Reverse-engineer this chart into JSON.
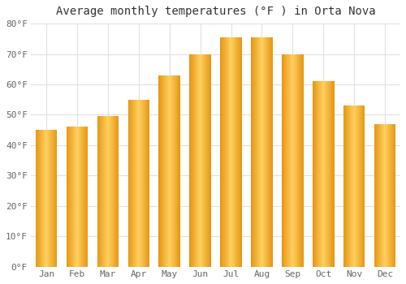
{
  "title": "Average monthly temperatures (°F ) in Orta Nova",
  "months": [
    "Jan",
    "Feb",
    "Mar",
    "Apr",
    "May",
    "Jun",
    "Jul",
    "Aug",
    "Sep",
    "Oct",
    "Nov",
    "Dec"
  ],
  "values": [
    45,
    46,
    49.5,
    55,
    63,
    70,
    75.5,
    75.5,
    70,
    61,
    53,
    47
  ],
  "bar_color_main": "#FFA500",
  "bar_color_light": "#FFD060",
  "bar_color_dark": "#E08800",
  "ylim": [
    0,
    80
  ],
  "yticks": [
    0,
    10,
    20,
    30,
    40,
    50,
    60,
    70,
    80
  ],
  "ytick_labels": [
    "0°F",
    "10°F",
    "20°F",
    "30°F",
    "40°F",
    "50°F",
    "60°F",
    "70°F",
    "80°F"
  ],
  "background_color": "#FFFFFF",
  "plot_bg_color": "#FFFFFF",
  "grid_color": "#E0E0E0",
  "title_fontsize": 10,
  "tick_fontsize": 8,
  "title_color": "#333333",
  "tick_color": "#666666",
  "bar_width": 0.7
}
